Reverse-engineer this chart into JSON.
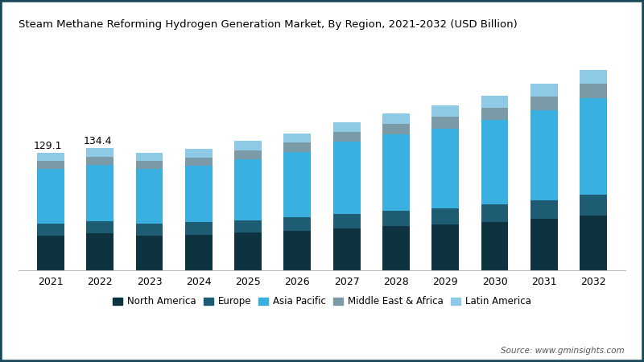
{
  "title": "Steam Methane Reforming Hydrogen Generation Market, By Region, 2021-2032 (USD Billion)",
  "years": [
    2021,
    2022,
    2023,
    2024,
    2025,
    2026,
    2027,
    2028,
    2029,
    2030,
    2031,
    2032
  ],
  "regions": [
    "North America",
    "Europe",
    "Asia Pacific",
    "Middle East & Africa",
    "Latin America"
  ],
  "colors": [
    "#0d3340",
    "#1e5c73",
    "#3ab0e0",
    "#7a9aa8",
    "#8ecae6"
  ],
  "data": {
    "North America": [
      38,
      40,
      38,
      39,
      41,
      43,
      46,
      48,
      50,
      53,
      56,
      60
    ],
    "Europe": [
      13,
      13.5,
      13,
      13.5,
      14,
      15,
      16,
      17,
      18,
      19,
      21,
      23
    ],
    "Asia Pacific": [
      60,
      62,
      60,
      62,
      67,
      72,
      79,
      84,
      88,
      93,
      99,
      106
    ],
    "Middle East & Africa": [
      9,
      9.5,
      9,
      9.5,
      10,
      10.5,
      11,
      12,
      13,
      14,
      15,
      16
    ],
    "Latin America": [
      9,
      9.4,
      9,
      9,
      10,
      10,
      11,
      11,
      12,
      13,
      14,
      15
    ]
  },
  "annotations": {
    "2021": "129.1",
    "2022": "134.4"
  },
  "source": "Source: www.gminsights.com",
  "background_color": "#ffffff",
  "border_color": "#1a4a5a",
  "ylim": [
    0,
    250
  ],
  "bar_width": 0.55
}
